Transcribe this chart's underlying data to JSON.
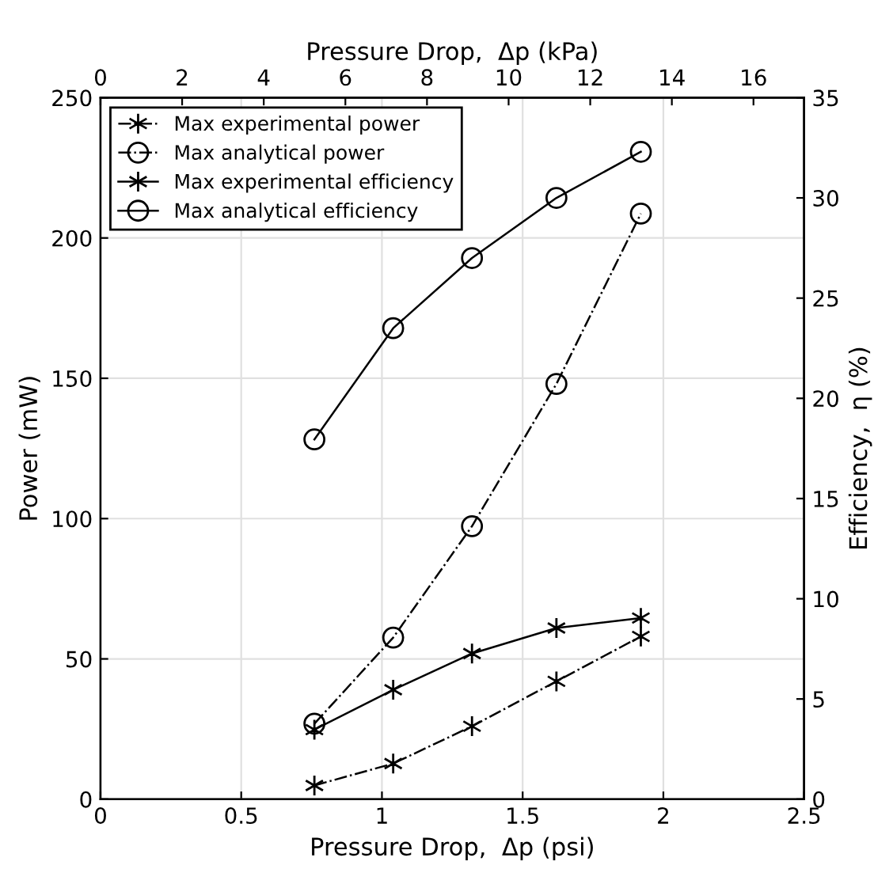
{
  "chart_data": {
    "type": "line",
    "xlabel": "Pressure Drop,  Δp (psi)",
    "ylabel": "Power (mW)",
    "y2label": "Efficiency,  η (%)",
    "x2label": "Pressure Drop,  Δp (kPa)",
    "x": [
      0.76,
      1.04,
      1.32,
      1.62,
      1.92
    ],
    "xlim": [
      0,
      2.5
    ],
    "xticks": [
      0,
      0.5,
      1,
      1.5,
      2,
      2.5
    ],
    "x2lim": [
      0,
      17.24
    ],
    "x2ticks": [
      0,
      2,
      4,
      6,
      8,
      10,
      12,
      14,
      16
    ],
    "ylim": [
      0,
      250
    ],
    "yticks": [
      0,
      50,
      100,
      150,
      200,
      250
    ],
    "y2lim": [
      0,
      35
    ],
    "y2ticks": [
      0,
      5,
      10,
      15,
      20,
      25,
      30,
      35
    ],
    "grid": true,
    "legend": "top left",
    "series": [
      {
        "name": "Max experimental power",
        "color": "#000000",
        "marker": "cross",
        "line_style": "dashdot",
        "values": [
          4.9,
          12.7,
          26,
          42,
          58
        ]
      },
      {
        "name": "Max analytical power",
        "color": "#000000",
        "marker": "circle",
        "line_style": "dashdot",
        "values": [
          26.9,
          57.6,
          97.3,
          148,
          208.7
        ]
      },
      {
        "name": "Max experimental efficiency",
        "color": "#000000",
        "marker": "cross",
        "line_style": "solid",
        "axis": "y2",
        "values": [
          3.47,
          5.46,
          7.27,
          8.54,
          9.04
        ]
      },
      {
        "name": "Max analytical efficiency",
        "color": "#000000",
        "marker": "circle",
        "line_style": "solid",
        "axis": "y2",
        "values": [
          17.95,
          23.5,
          27.0,
          30.0,
          32.3
        ]
      }
    ]
  }
}
